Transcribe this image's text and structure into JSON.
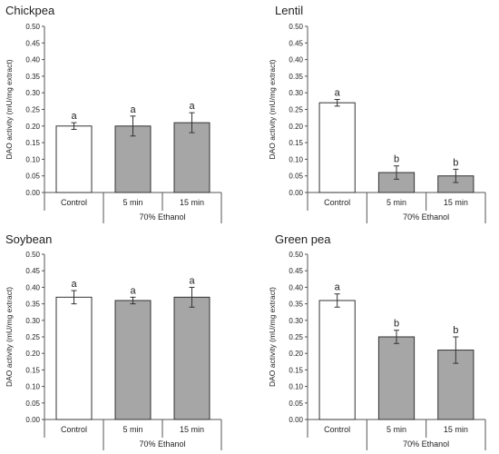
{
  "chart_data": [
    {
      "type": "bar",
      "title": "Chickpea",
      "ylabel": "DAO activity (mU/mg extract)",
      "categories": [
        "Control",
        "5 min",
        "15 min"
      ],
      "group_label": "70% Ethanol",
      "values": [
        0.2,
        0.2,
        0.21
      ],
      "errors": [
        0.01,
        0.03,
        0.03
      ],
      "significance": [
        "a",
        "a",
        "a"
      ],
      "ylim": [
        0,
        0.5
      ],
      "yticks": [
        "0.00",
        "0.05",
        "0.10",
        "0.15",
        "0.20",
        "0.25",
        "0.30",
        "0.35",
        "0.40",
        "0.45",
        "0.50"
      ],
      "bar_colors": [
        "#ffffff",
        "#a6a6a6",
        "#a6a6a6"
      ]
    },
    {
      "type": "bar",
      "title": "Lentil",
      "ylabel": "DAO activity (mU/mg extract)",
      "categories": [
        "Control",
        "5 min",
        "15 min"
      ],
      "group_label": "70% Ethanol",
      "values": [
        0.27,
        0.06,
        0.05
      ],
      "errors": [
        0.01,
        0.02,
        0.02
      ],
      "significance": [
        "a",
        "b",
        "b"
      ],
      "ylim": [
        0,
        0.5
      ],
      "yticks": [
        "0.00",
        "0.05",
        "0.10",
        "0.15",
        "0.20",
        "0.25",
        "0.30",
        "0.35",
        "0.40",
        "0.45",
        "0.50"
      ],
      "bar_colors": [
        "#ffffff",
        "#a6a6a6",
        "#a6a6a6"
      ]
    },
    {
      "type": "bar",
      "title": "Soybean",
      "ylabel": "DAO activity (mU/mg extract)",
      "categories": [
        "Control",
        "5 min",
        "15 min"
      ],
      "group_label": "70% Ethanol",
      "values": [
        0.37,
        0.36,
        0.37
      ],
      "errors": [
        0.02,
        0.01,
        0.03
      ],
      "significance": [
        "a",
        "a",
        "a"
      ],
      "ylim": [
        0,
        0.5
      ],
      "yticks": [
        "0.00",
        "0.05",
        "0.10",
        "0.15",
        "0.20",
        "0.25",
        "0.30",
        "0.35",
        "0.40",
        "0.45",
        "0.50"
      ],
      "bar_colors": [
        "#ffffff",
        "#a6a6a6",
        "#a6a6a6"
      ]
    },
    {
      "type": "bar",
      "title": "Green pea",
      "ylabel": "DAO activity (mU/mg extract)",
      "categories": [
        "Control",
        "5 min",
        "15 min"
      ],
      "group_label": "70% Ethanol",
      "values": [
        0.36,
        0.25,
        0.21
      ],
      "errors": [
        0.02,
        0.02,
        0.04
      ],
      "significance": [
        "a",
        "b",
        "b"
      ],
      "ylim": [
        0,
        0.5
      ],
      "yticks": [
        "0.00",
        "0.05",
        "0.10",
        "0.15",
        "0.20",
        "0.25",
        "0.30",
        "0.35",
        "0.40",
        "0.45",
        "0.50"
      ],
      "bar_colors": [
        "#ffffff",
        "#a6a6a6",
        "#a6a6a6"
      ]
    }
  ]
}
